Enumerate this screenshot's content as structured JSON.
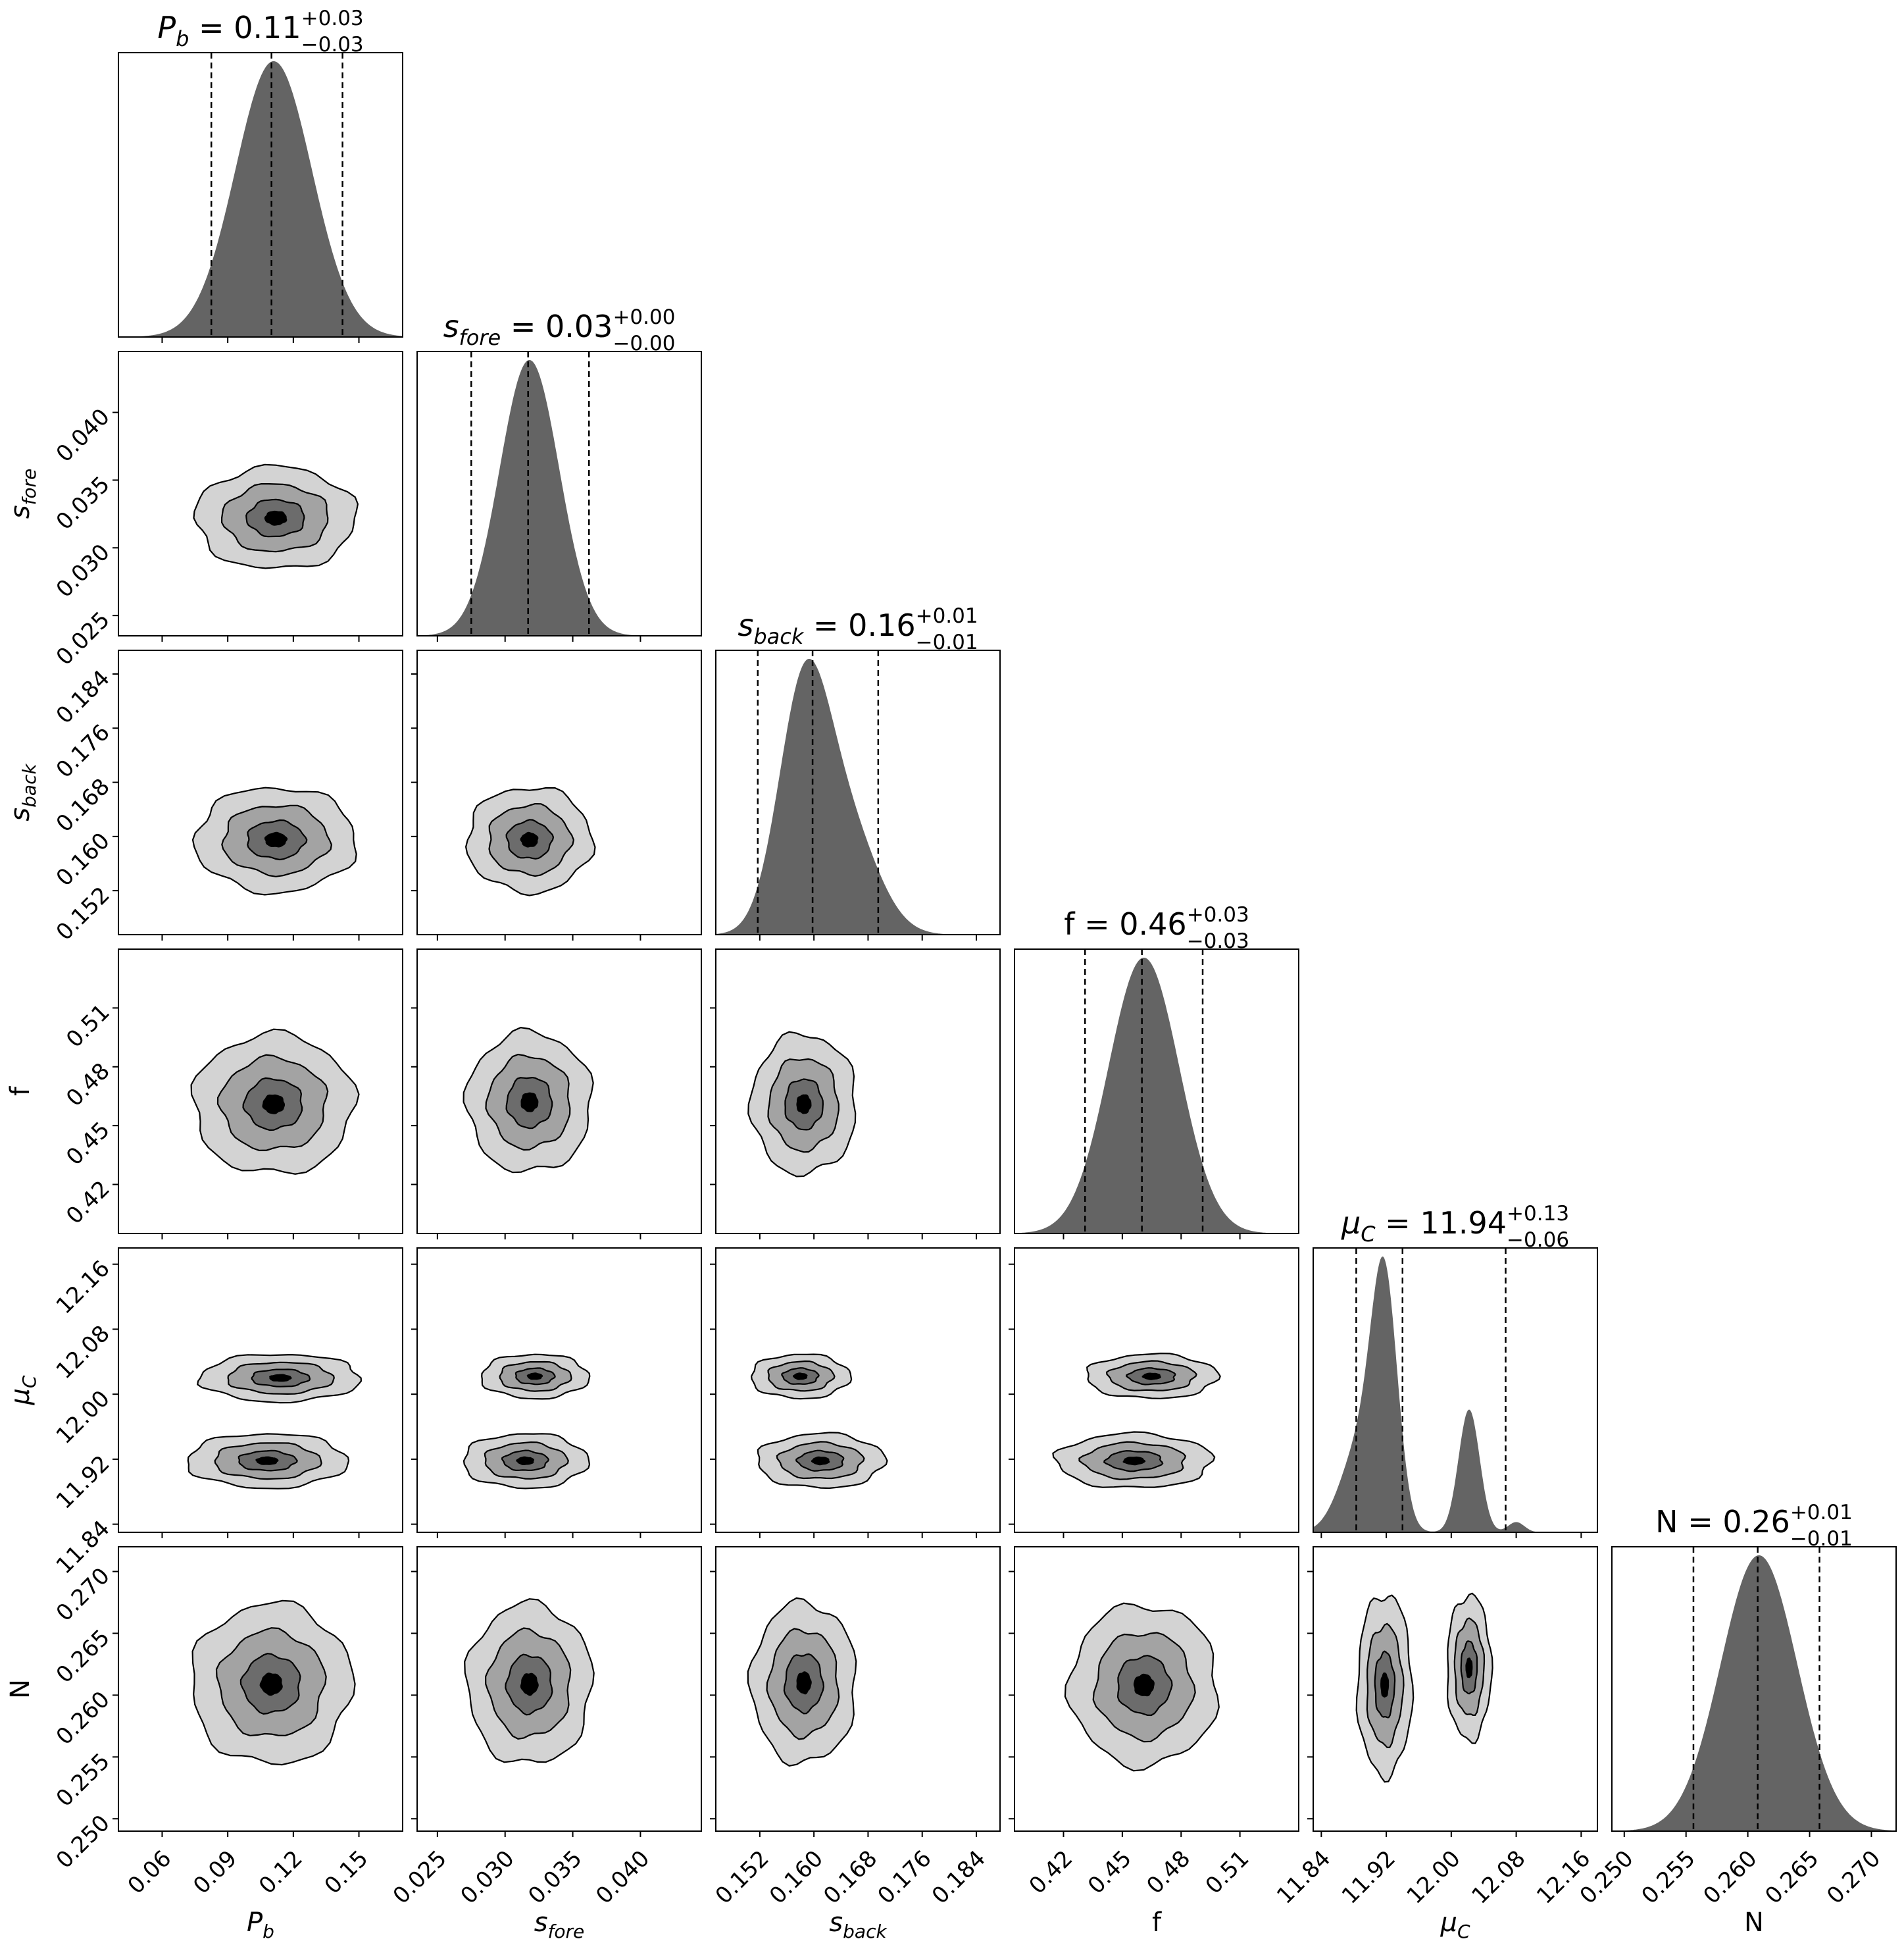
{
  "chart_data": {
    "type": "corner",
    "parameters": [
      {
        "id": "Pb",
        "label": "P",
        "label_sub": "b",
        "italic": true,
        "median": 0.11,
        "q_minus": 0.0825,
        "q_plus": 0.1425,
        "lim": [
          0.04,
          0.17
        ],
        "ticks": [
          "0.06",
          "0.09",
          "0.12",
          "0.15"
        ],
        "tick_values": [
          0.06,
          0.09,
          0.12,
          0.15
        ],
        "title": {
          "prefix": "P",
          "sub": "b",
          "value": " = 0.11",
          "plus": "+0.03",
          "minus": "−0.03",
          "italic": true
        },
        "hist": {
          "kind": "gauss",
          "components": [
            {
              "w": 1.0,
              "mu": 0.111,
              "sd": 0.0175
            }
          ]
        }
      },
      {
        "id": "sfore",
        "label": "s",
        "label_sub": "fore",
        "italic": true,
        "median": 0.0317,
        "q_minus": 0.0275,
        "q_plus": 0.0362,
        "lim": [
          0.0235,
          0.0445
        ],
        "ticks": [
          "0.025",
          "0.030",
          "0.035",
          "0.040"
        ],
        "tick_values": [
          0.025,
          0.03,
          0.035,
          0.04
        ],
        "title": {
          "prefix": "s",
          "sub": "fore",
          "value": " = 0.03",
          "plus": "+0.00",
          "minus": "−0.00",
          "italic": true
        },
        "hist": {
          "kind": "gauss",
          "components": [
            {
              "w": 1.0,
              "mu": 0.0318,
              "sd": 0.0022
            }
          ]
        }
      },
      {
        "id": "sback",
        "label": "s",
        "label_sub": "back",
        "italic": true,
        "median": 0.1598,
        "q_minus": 0.1517,
        "q_plus": 0.1695,
        "lim": [
          0.1455,
          0.1875
        ],
        "ticks": [
          "0.152",
          "0.160",
          "0.168",
          "0.176",
          "0.184"
        ],
        "tick_values": [
          0.152,
          0.16,
          0.168,
          0.176,
          0.184
        ],
        "title": {
          "prefix": "s",
          "sub": "back",
          "value": " = 0.16",
          "plus": "+0.01",
          "minus": "−0.01",
          "italic": true
        },
        "hist": {
          "kind": "gauss",
          "components": [
            {
              "w": 0.7,
              "mu": 0.1585,
              "sd": 0.0038
            },
            {
              "w": 0.3,
              "mu": 0.165,
              "sd": 0.0045
            }
          ]
        }
      },
      {
        "id": "f",
        "label": "f",
        "label_sub": "",
        "italic": false,
        "median": 0.46,
        "q_minus": 0.431,
        "q_plus": 0.491,
        "lim": [
          0.395,
          0.54
        ],
        "ticks": [
          "0.42",
          "0.45",
          "0.48",
          "0.51"
        ],
        "tick_values": [
          0.42,
          0.45,
          0.48,
          0.51
        ],
        "title": {
          "prefix": "f",
          "sub": "",
          "value": " = 0.46",
          "plus": "+0.03",
          "minus": "−0.03",
          "italic": false
        },
        "hist": {
          "kind": "gauss",
          "components": [
            {
              "w": 1.0,
              "mu": 0.461,
              "sd": 0.018
            }
          ]
        }
      },
      {
        "id": "muC",
        "label": "μ",
        "label_sub": "C",
        "italic": true,
        "median": 11.94,
        "q_minus": 11.883,
        "q_plus": 12.067,
        "lim": [
          11.83,
          12.18
        ],
        "ticks": [
          "11.84",
          "11.92",
          "12.00",
          "12.08",
          "12.16"
        ],
        "tick_values": [
          11.84,
          11.92,
          12.0,
          12.08,
          12.16
        ],
        "title": {
          "prefix": "μ",
          "sub": "C",
          "value": " = 11.94",
          "plus": "+0.13",
          "minus": "−0.06",
          "italic": true
        },
        "hist": {
          "kind": "gauss",
          "components": [
            {
              "w": 0.55,
              "mu": 11.918,
              "sd": 0.016
            },
            {
              "w": 0.22,
              "mu": 11.89,
              "sd": 0.025
            },
            {
              "w": 0.3,
              "mu": 12.022,
              "sd": 0.013
            },
            {
              "w": 0.025,
              "mu": 12.08,
              "sd": 0.01
            }
          ]
        }
      },
      {
        "id": "N",
        "label": "N",
        "label_sub": "",
        "italic": false,
        "median": 0.2608,
        "q_minus": 0.2556,
        "q_plus": 0.2658,
        "lim": [
          0.249,
          0.272
        ],
        "ticks": [
          "0.250",
          "0.255",
          "0.260",
          "0.265",
          "0.270"
        ],
        "tick_values": [
          0.25,
          0.255,
          0.26,
          0.265,
          0.27
        ],
        "title": {
          "prefix": "N",
          "sub": "",
          "value": " = 0.26",
          "plus": "+0.01",
          "minus": "−0.01",
          "italic": false
        },
        "hist": {
          "kind": "gauss",
          "components": [
            {
              "w": 1.0,
              "mu": 0.2609,
              "sd": 0.0031
            }
          ]
        }
      }
    ],
    "pairs": [
      {
        "row": 1,
        "col": 0,
        "blobs": [
          {
            "cx": 0.112,
            "cy": 0.0322,
            "rx": 0.0175,
            "ry": 0.0018
          }
        ]
      },
      {
        "row": 2,
        "col": 0,
        "blobs": [
          {
            "cx": 0.112,
            "cy": 0.1595,
            "rx": 0.0175,
            "ry": 0.0037
          }
        ]
      },
      {
        "row": 2,
        "col": 1,
        "blobs": [
          {
            "cx": 0.0318,
            "cy": 0.1595,
            "rx": 0.0022,
            "ry": 0.0037
          }
        ]
      },
      {
        "row": 3,
        "col": 0,
        "blobs": [
          {
            "cx": 0.111,
            "cy": 0.461,
            "rx": 0.0175,
            "ry": 0.017
          }
        ]
      },
      {
        "row": 3,
        "col": 1,
        "blobs": [
          {
            "cx": 0.0318,
            "cy": 0.462,
            "rx": 0.0022,
            "ry": 0.017
          }
        ]
      },
      {
        "row": 3,
        "col": 2,
        "blobs": [
          {
            "cx": 0.1585,
            "cy": 0.461,
            "rx": 0.0037,
            "ry": 0.017
          }
        ]
      },
      {
        "row": 3,
        "col": 3,
        "hist": true
      },
      {
        "row": 4,
        "col": 0,
        "blobs": [
          {
            "cx": 0.114,
            "cy": 12.02,
            "rx": 0.0175,
            "ry": 0.014
          },
          {
            "cx": 0.108,
            "cy": 11.918,
            "rx": 0.0175,
            "ry": 0.016
          }
        ]
      },
      {
        "row": 4,
        "col": 1,
        "blobs": [
          {
            "cx": 0.0322,
            "cy": 12.022,
            "rx": 0.0019,
            "ry": 0.013
          },
          {
            "cx": 0.0315,
            "cy": 11.918,
            "rx": 0.0022,
            "ry": 0.016
          }
        ]
      },
      {
        "row": 4,
        "col": 2,
        "blobs": [
          {
            "cx": 0.158,
            "cy": 12.022,
            "rx": 0.0035,
            "ry": 0.013
          },
          {
            "cx": 0.161,
            "cy": 11.918,
            "rx": 0.0045,
            "ry": 0.016
          }
        ]
      },
      {
        "row": 4,
        "col": 3,
        "blobs": [
          {
            "cx": 0.465,
            "cy": 12.022,
            "rx": 0.016,
            "ry": 0.013
          },
          {
            "cx": 0.456,
            "cy": 11.918,
            "rx": 0.019,
            "ry": 0.016
          }
        ]
      },
      {
        "row": 5,
        "col": 0,
        "blobs": [
          {
            "cx": 0.11,
            "cy": 0.2609,
            "rx": 0.0175,
            "ry": 0.0031
          }
        ]
      },
      {
        "row": 5,
        "col": 1,
        "blobs": [
          {
            "cx": 0.0318,
            "cy": 0.2609,
            "rx": 0.0022,
            "ry": 0.0031
          }
        ]
      },
      {
        "row": 5,
        "col": 2,
        "blobs": [
          {
            "cx": 0.1585,
            "cy": 0.261,
            "rx": 0.0037,
            "ry": 0.0031
          }
        ]
      },
      {
        "row": 5,
        "col": 3,
        "blobs": [
          {
            "cx": 0.461,
            "cy": 0.2608,
            "rx": 0.018,
            "ry": 0.0031
          }
        ]
      },
      {
        "row": 5,
        "col": 4,
        "blobs": [
          {
            "cx": 11.918,
            "cy": 0.2608,
            "rx": 0.016,
            "ry": 0.0035
          },
          {
            "cx": 12.022,
            "cy": 0.2622,
            "rx": 0.013,
            "ry": 0.0028
          }
        ]
      }
    ],
    "levels": [
      1.0,
      0.66,
      0.36,
      0.13
    ],
    "level_colors": [
      "#d3d3d3",
      "#a3a3a3",
      "#6c6c6c",
      "#000000"
    ],
    "hist_color": "#646464",
    "frame_color": "#000000"
  }
}
